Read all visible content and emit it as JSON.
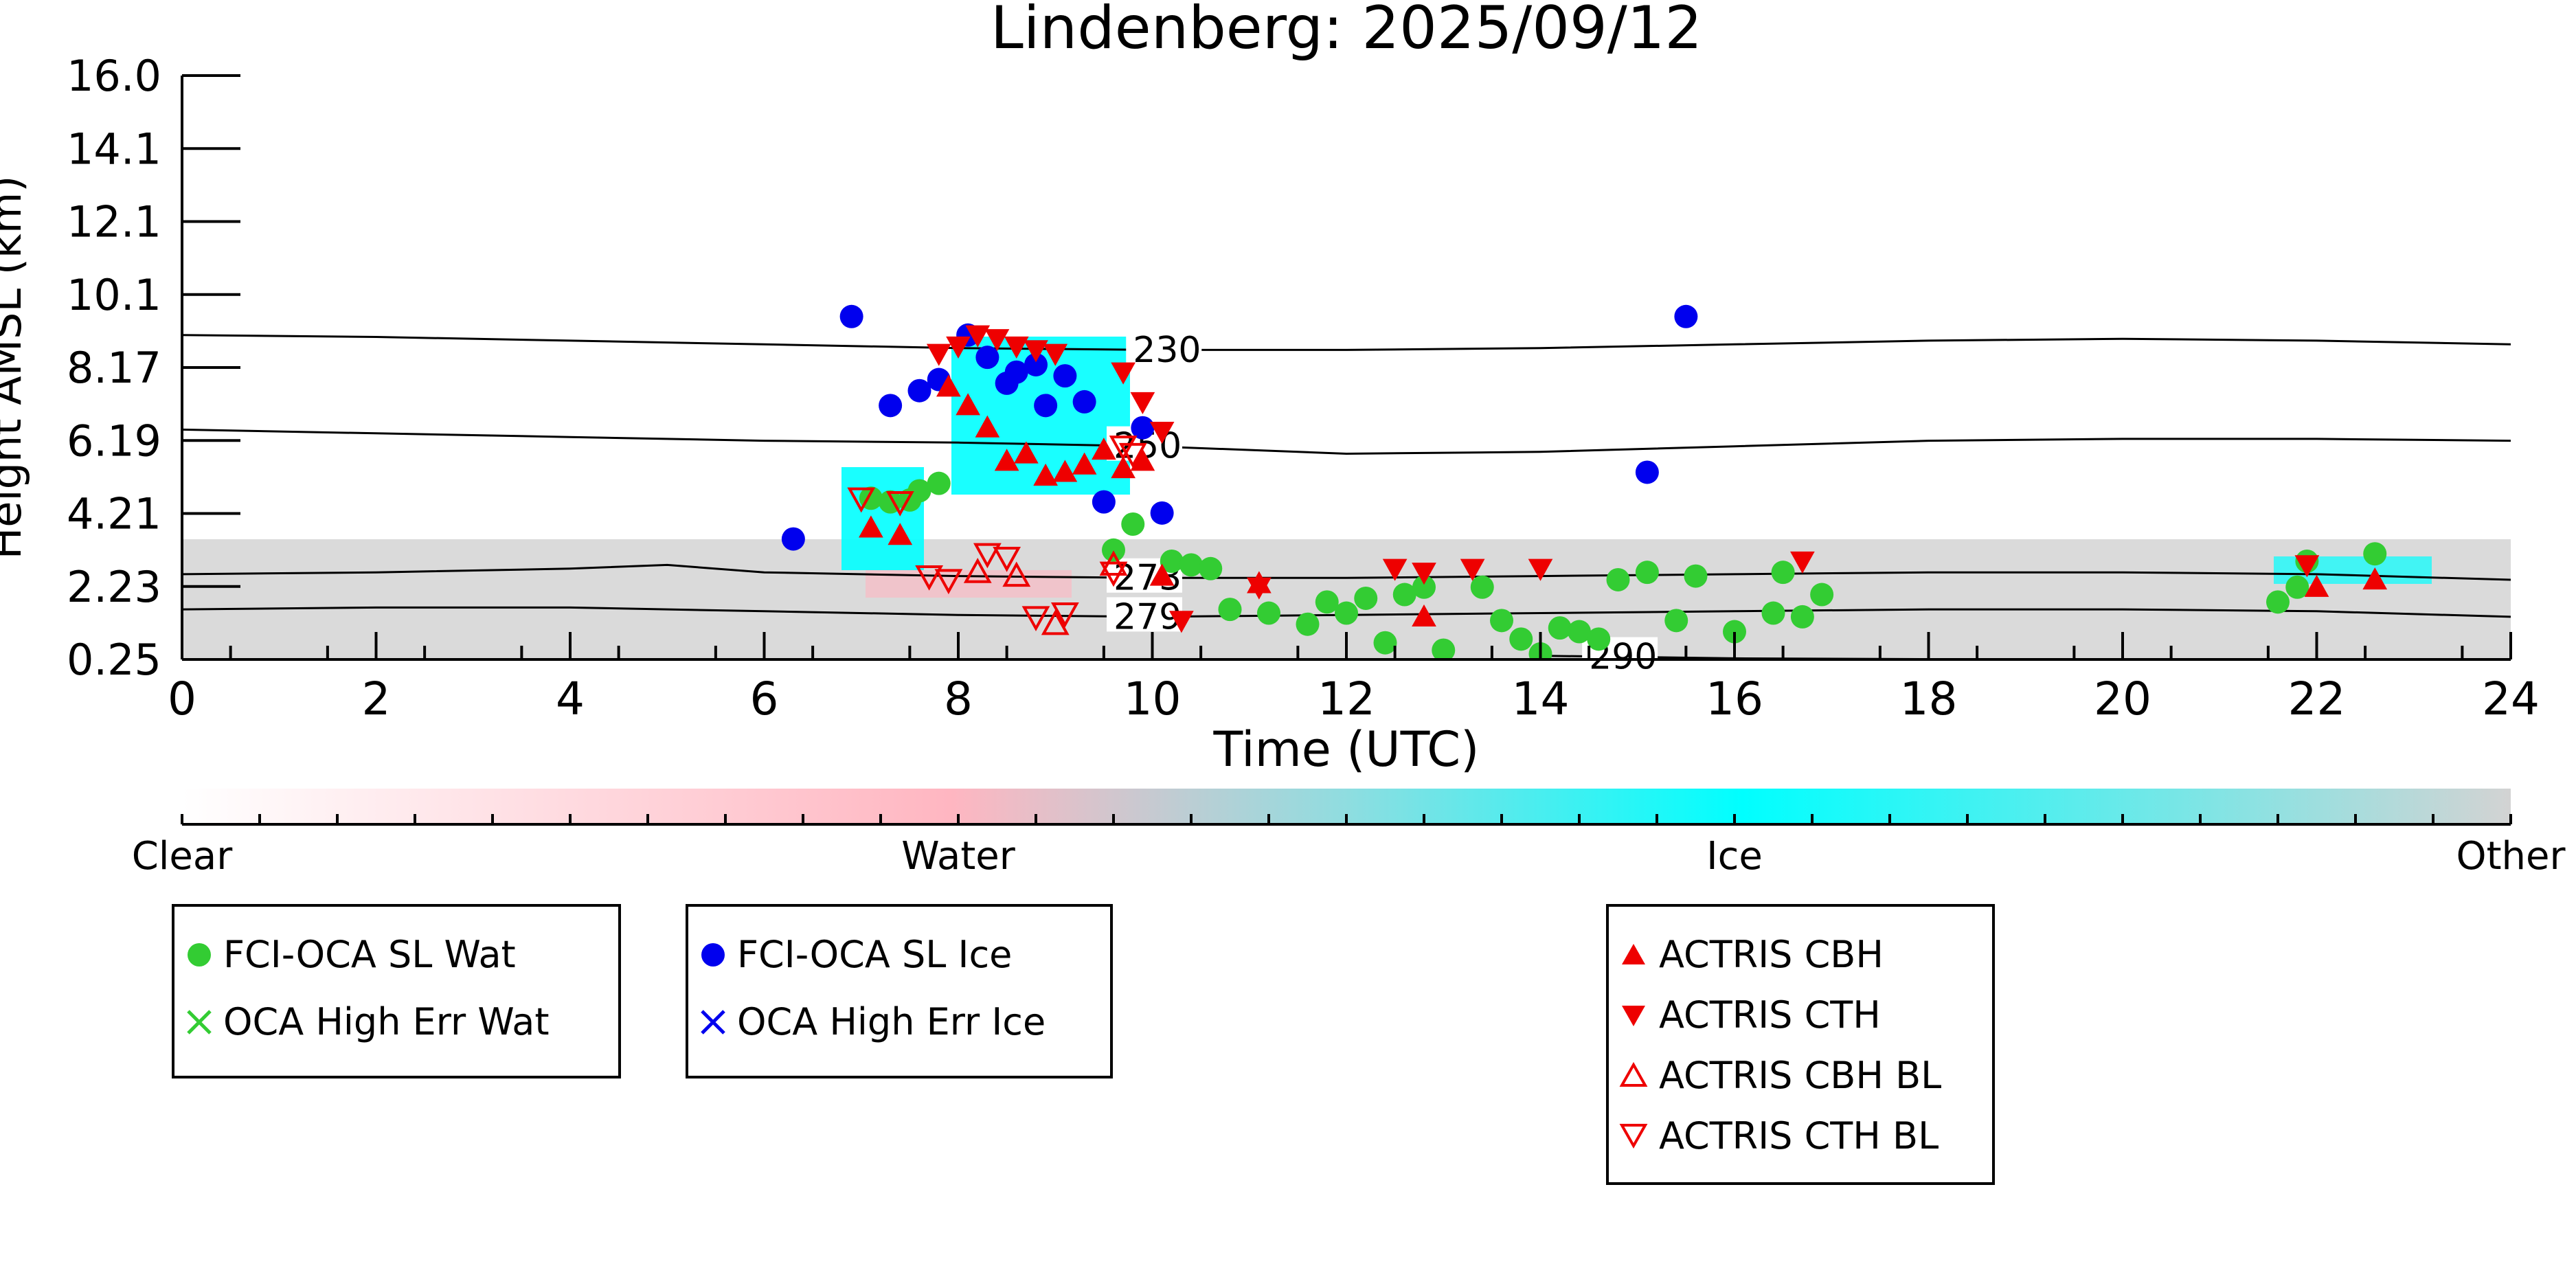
{
  "chart_data": {
    "type": "scatter",
    "title": "Lindenberg: 2025/09/12",
    "xlabel": "Time (UTC)",
    "ylabel": "Height AMSL (km)",
    "xlim": [
      0,
      24
    ],
    "ylim": [
      0.25,
      16.0
    ],
    "xticks": [
      0,
      2,
      4,
      6,
      8,
      10,
      12,
      14,
      16,
      18,
      20,
      22,
      24
    ],
    "yticks": [
      "0.25",
      "2.23",
      "4.21",
      "6.19",
      "8.17",
      "10.1",
      "12.1",
      "14.1",
      "16.0"
    ],
    "contour_lines": [
      {
        "label": "230",
        "label_x": 9.8,
        "points": [
          [
            0,
            9.0
          ],
          [
            2,
            8.95
          ],
          [
            4,
            8.85
          ],
          [
            6,
            8.75
          ],
          [
            8,
            8.65
          ],
          [
            10,
            8.6
          ],
          [
            12,
            8.6
          ],
          [
            14,
            8.65
          ],
          [
            16,
            8.75
          ],
          [
            18,
            8.85
          ],
          [
            20,
            8.9
          ],
          [
            22,
            8.85
          ],
          [
            24,
            8.75
          ]
        ]
      },
      {
        "label": "250",
        "label_x": 9.6,
        "points": [
          [
            0,
            6.45
          ],
          [
            2,
            6.35
          ],
          [
            4,
            6.25
          ],
          [
            6,
            6.15
          ],
          [
            8,
            6.1
          ],
          [
            10,
            6.0
          ],
          [
            12,
            5.8
          ],
          [
            14,
            5.85
          ],
          [
            16,
            6.0
          ],
          [
            18,
            6.15
          ],
          [
            20,
            6.2
          ],
          [
            22,
            6.2
          ],
          [
            24,
            6.15
          ]
        ]
      },
      {
        "label": "273",
        "label_x": 9.6,
        "points": [
          [
            0,
            2.55
          ],
          [
            2,
            2.6
          ],
          [
            4,
            2.7
          ],
          [
            5,
            2.8
          ],
          [
            6,
            2.6
          ],
          [
            8,
            2.5
          ],
          [
            10,
            2.45
          ],
          [
            12,
            2.45
          ],
          [
            14,
            2.5
          ],
          [
            16,
            2.55
          ],
          [
            18,
            2.6
          ],
          [
            20,
            2.6
          ],
          [
            22,
            2.55
          ],
          [
            24,
            2.4
          ]
        ]
      },
      {
        "label": "279",
        "label_x": 9.6,
        "points": [
          [
            0,
            1.6
          ],
          [
            2,
            1.65
          ],
          [
            4,
            1.65
          ],
          [
            6,
            1.55
          ],
          [
            8,
            1.45
          ],
          [
            10,
            1.4
          ],
          [
            12,
            1.45
          ],
          [
            14,
            1.5
          ],
          [
            16,
            1.55
          ],
          [
            18,
            1.6
          ],
          [
            20,
            1.6
          ],
          [
            22,
            1.55
          ],
          [
            24,
            1.4
          ]
        ]
      },
      {
        "label": "290",
        "label_x": 14.5,
        "points": [
          [
            14,
            0.35
          ],
          [
            16,
            0.28
          ],
          [
            18,
            0.26
          ]
        ]
      }
    ],
    "series": [
      {
        "name": "FCI-OCA SL Wat",
        "marker": "circle",
        "color": "#33cc33",
        "points": [
          [
            7.1,
            4.6
          ],
          [
            7.3,
            4.5
          ],
          [
            7.5,
            4.55
          ],
          [
            7.6,
            4.8
          ],
          [
            7.8,
            5.0
          ],
          [
            9.6,
            3.2
          ],
          [
            9.8,
            3.9
          ],
          [
            10.2,
            2.9
          ],
          [
            10.4,
            2.8
          ],
          [
            10.6,
            2.7
          ],
          [
            10.8,
            1.6
          ],
          [
            11.2,
            1.5
          ],
          [
            11.6,
            1.2
          ],
          [
            11.8,
            1.8
          ],
          [
            12.0,
            1.5
          ],
          [
            12.2,
            1.9
          ],
          [
            12.4,
            0.7
          ],
          [
            12.6,
            2.0
          ],
          [
            12.8,
            2.2
          ],
          [
            13.0,
            0.5
          ],
          [
            13.4,
            2.2
          ],
          [
            13.6,
            1.3
          ],
          [
            13.8,
            0.8
          ],
          [
            14.0,
            0.4
          ],
          [
            14.2,
            1.1
          ],
          [
            14.4,
            1.0
          ],
          [
            14.6,
            0.8
          ],
          [
            14.8,
            2.4
          ],
          [
            15.1,
            2.6
          ],
          [
            15.4,
            1.3
          ],
          [
            15.6,
            2.5
          ],
          [
            16.0,
            1.0
          ],
          [
            16.4,
            1.5
          ],
          [
            16.5,
            2.6
          ],
          [
            16.7,
            1.4
          ],
          [
            16.9,
            2.0
          ],
          [
            21.6,
            1.8
          ],
          [
            21.8,
            2.2
          ],
          [
            21.9,
            2.9
          ],
          [
            22.6,
            3.1
          ]
        ]
      },
      {
        "name": "FCI-OCA SL Ice",
        "marker": "circle",
        "color": "#0000ee",
        "points": [
          [
            6.3,
            3.5
          ],
          [
            6.9,
            9.5
          ],
          [
            7.3,
            7.1
          ],
          [
            7.6,
            7.5
          ],
          [
            7.8,
            7.8
          ],
          [
            8.1,
            9.0
          ],
          [
            8.3,
            8.4
          ],
          [
            8.5,
            7.7
          ],
          [
            8.6,
            8.0
          ],
          [
            8.8,
            8.2
          ],
          [
            8.9,
            7.1
          ],
          [
            9.1,
            7.9
          ],
          [
            9.3,
            7.2
          ],
          [
            9.5,
            4.5
          ],
          [
            9.9,
            6.5
          ],
          [
            10.1,
            4.2
          ],
          [
            15.1,
            5.3
          ],
          [
            15.5,
            9.5
          ]
        ]
      },
      {
        "name": "ACTRIS CBH",
        "marker": "triangle-up",
        "color": "#ee0000",
        "points": [
          [
            7.1,
            3.8
          ],
          [
            7.4,
            3.6
          ],
          [
            7.9,
            7.6
          ],
          [
            8.1,
            7.1
          ],
          [
            8.3,
            6.5
          ],
          [
            8.5,
            5.6
          ],
          [
            8.7,
            5.8
          ],
          [
            8.9,
            5.2
          ],
          [
            9.1,
            5.3
          ],
          [
            9.3,
            5.5
          ],
          [
            9.5,
            5.9
          ],
          [
            9.7,
            5.4
          ],
          [
            9.9,
            5.6
          ],
          [
            10.1,
            2.5
          ],
          [
            11.1,
            2.3
          ],
          [
            12.8,
            1.4
          ],
          [
            22.0,
            2.2
          ],
          [
            22.6,
            2.4
          ]
        ]
      },
      {
        "name": "ACTRIS CTH",
        "marker": "triangle-down",
        "color": "#ee0000",
        "points": [
          [
            7.8,
            8.5
          ],
          [
            8.0,
            8.7
          ],
          [
            8.2,
            9.0
          ],
          [
            8.4,
            8.9
          ],
          [
            8.6,
            8.7
          ],
          [
            8.8,
            8.6
          ],
          [
            9.0,
            8.5
          ],
          [
            9.7,
            8.0
          ],
          [
            9.9,
            7.2
          ],
          [
            10.1,
            6.4
          ],
          [
            10.3,
            1.3
          ],
          [
            11.1,
            2.2
          ],
          [
            12.5,
            2.7
          ],
          [
            12.8,
            2.6
          ],
          [
            13.3,
            2.7
          ],
          [
            14.0,
            2.7
          ],
          [
            16.7,
            2.9
          ],
          [
            21.9,
            2.8
          ]
        ]
      },
      {
        "name": "ACTRIS CBH BL",
        "marker": "triangle-up-open",
        "color": "#ee0000",
        "points": [
          [
            8.2,
            2.6
          ],
          [
            8.6,
            2.5
          ],
          [
            9.0,
            1.2
          ],
          [
            9.6,
            2.8
          ]
        ]
      },
      {
        "name": "ACTRIS CTH BL",
        "marker": "triangle-down-open",
        "color": "#ee0000",
        "points": [
          [
            7.0,
            4.6
          ],
          [
            7.4,
            4.5
          ],
          [
            7.7,
            2.5
          ],
          [
            7.9,
            2.4
          ],
          [
            8.3,
            3.1
          ],
          [
            8.5,
            3.0
          ],
          [
            8.8,
            1.4
          ],
          [
            9.1,
            1.5
          ],
          [
            9.6,
            2.6
          ],
          [
            9.7,
            6.0
          ],
          [
            9.8,
            5.8
          ]
        ]
      }
    ],
    "legend_extra": [
      {
        "name": "OCA High Err Wat",
        "marker": "x",
        "color": "#33cc33"
      },
      {
        "name": "OCA High Err Ice",
        "marker": "x",
        "color": "#0000ee"
      }
    ],
    "colorbar": {
      "labels": [
        "Clear",
        "Water",
        "Ice",
        "Other"
      ],
      "colors": [
        "#ffffff",
        "#ffb6c1",
        "#00ffff",
        "#d3d3d3"
      ]
    }
  }
}
